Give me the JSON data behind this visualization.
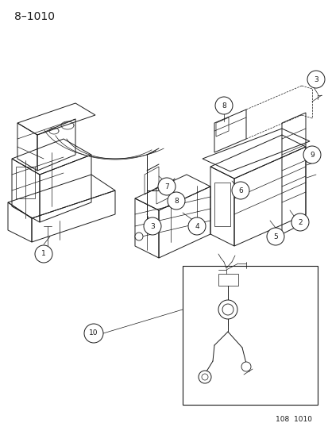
{
  "title": "8–1010",
  "footer": "108  1010",
  "background_color": "#ffffff",
  "line_color": "#1a1a1a",
  "fig_width": 4.14,
  "fig_height": 5.33,
  "dpi": 100,
  "title_fontsize": 10,
  "footer_fontsize": 6.5,
  "callout_fontsize": 6.0,
  "callout_r": 0.013
}
